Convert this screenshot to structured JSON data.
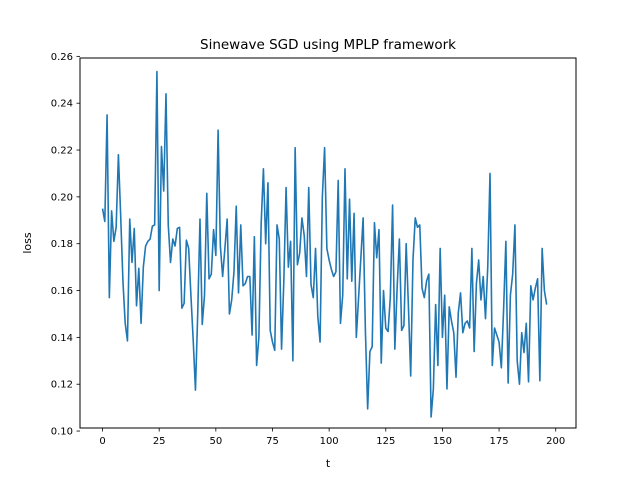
{
  "chart_data": {
    "type": "line",
    "title": "Sinewave SGD using MPLP framework",
    "xlabel": "t",
    "ylabel": "loss",
    "xlim": [
      -9.95,
      208.95
    ],
    "ylim": [
      0.1013,
      0.2593
    ],
    "xticks": [
      0,
      25,
      50,
      75,
      100,
      125,
      150,
      175,
      200
    ],
    "xtick_labels": [
      "0",
      "25",
      "50",
      "75",
      "100",
      "125",
      "150",
      "175",
      "200"
    ],
    "yticks": [
      0.1,
      0.12,
      0.14,
      0.16,
      0.18,
      0.2,
      0.22,
      0.24,
      0.26
    ],
    "ytick_labels": [
      "0.10",
      "0.12",
      "0.14",
      "0.16",
      "0.18",
      "0.20",
      "0.22",
      "0.24",
      "0.26"
    ],
    "grid": false,
    "legend": "none",
    "series": [
      {
        "color": "#1f77b4",
        "x_start": 0,
        "x_step": 1,
        "values": [
          0.195,
          0.1895,
          0.235,
          0.157,
          0.194,
          0.181,
          0.187,
          0.218,
          0.192,
          0.164,
          0.146,
          0.1385,
          0.1905,
          0.172,
          0.1865,
          0.1535,
          0.1695,
          0.146,
          0.17,
          0.179,
          0.181,
          0.182,
          0.1875,
          0.188,
          0.2535,
          0.16,
          0.2215,
          0.2025,
          0.244,
          0.188,
          0.172,
          0.182,
          0.179,
          0.1865,
          0.187,
          0.1525,
          0.1545,
          0.1815,
          0.178,
          0.158,
          0.139,
          0.1175,
          0.15,
          0.1905,
          0.1455,
          0.158,
          0.2015,
          0.165,
          0.167,
          0.186,
          0.175,
          0.2285,
          0.179,
          0.166,
          0.178,
          0.1905,
          0.15,
          0.156,
          0.168,
          0.196,
          0.159,
          0.188,
          0.162,
          0.163,
          0.166,
          0.166,
          0.141,
          0.183,
          0.128,
          0.14,
          0.1885,
          0.212,
          0.18,
          0.206,
          0.143,
          0.138,
          0.1345,
          0.188,
          0.182,
          0.135,
          0.164,
          0.204,
          0.17,
          0.181,
          0.13,
          0.221,
          0.171,
          0.176,
          0.191,
          0.1835,
          0.166,
          0.204,
          0.1625,
          0.157,
          0.178,
          0.149,
          0.138,
          0.2,
          0.221,
          0.178,
          0.173,
          0.169,
          0.166,
          0.168,
          0.207,
          0.146,
          0.158,
          0.212,
          0.165,
          0.199,
          0.164,
          0.193,
          0.14,
          0.157,
          0.174,
          0.191,
          0.143,
          0.1095,
          0.134,
          0.136,
          0.189,
          0.174,
          0.186,
          0.129,
          0.16,
          0.144,
          0.1425,
          0.157,
          0.1965,
          0.135,
          0.161,
          0.182,
          0.143,
          0.145,
          0.18,
          0.153,
          0.1235,
          0.173,
          0.191,
          0.187,
          0.188,
          0.161,
          0.157,
          0.164,
          0.167,
          0.106,
          0.118,
          0.154,
          0.128,
          0.178,
          0.14,
          0.158,
          0.118,
          0.153,
          0.147,
          0.142,
          0.123,
          0.1505,
          0.159,
          0.142,
          0.146,
          0.147,
          0.144,
          0.178,
          0.134,
          0.163,
          0.173,
          0.156,
          0.166,
          0.148,
          0.17,
          0.21,
          0.128,
          0.144,
          0.141,
          0.138,
          0.127,
          0.152,
          0.181,
          0.1205,
          0.158,
          0.167,
          0.188,
          0.13,
          0.12,
          0.142,
          0.1335,
          0.146,
          0.121,
          0.162,
          0.156,
          0.161,
          0.165,
          0.1215,
          0.178,
          0.16,
          0.154
        ]
      }
    ]
  }
}
